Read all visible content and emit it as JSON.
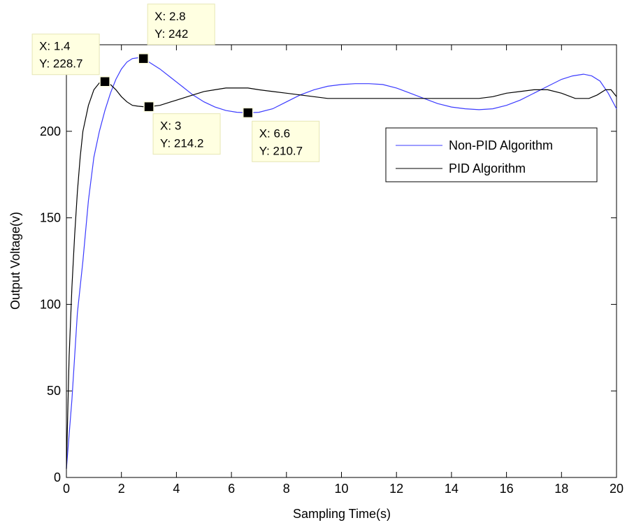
{
  "chart_data": {
    "type": "line",
    "title": "",
    "xlabel": "Sampling Time(s)",
    "ylabel": "Output Voltage(v)",
    "xlim": [
      0,
      20
    ],
    "ylim": [
      0,
      250
    ],
    "x_ticks": [
      0,
      2,
      4,
      6,
      8,
      10,
      12,
      14,
      16,
      18,
      20
    ],
    "y_ticks": [
      0,
      50,
      100,
      150,
      200
    ],
    "grid": false,
    "legend_position": "upper-right",
    "series": [
      {
        "name": "Non-PID Algorithm",
        "color": "#3b3bff",
        "x": [
          0,
          0.2,
          0.4,
          0.6,
          0.8,
          1.0,
          1.2,
          1.4,
          1.6,
          1.8,
          2.0,
          2.2,
          2.4,
          2.6,
          2.8,
          3.0,
          3.4,
          3.8,
          4.2,
          4.6,
          5.0,
          5.4,
          5.8,
          6.2,
          6.6,
          7.0,
          7.5,
          8.0,
          8.5,
          9.0,
          9.5,
          10.0,
          10.5,
          11.0,
          11.5,
          12.0,
          12.5,
          13.0,
          13.5,
          14.0,
          14.5,
          15.0,
          15.5,
          16.0,
          16.5,
          17.0,
          17.5,
          18.0,
          18.4,
          18.8,
          19.1,
          19.4,
          19.7,
          20.0
        ],
        "values": [
          5,
          45,
          95,
          125,
          160,
          185,
          200,
          212,
          222,
          230,
          236,
          240,
          242,
          242.5,
          242,
          240,
          236,
          231,
          226,
          221,
          217,
          214,
          212,
          211,
          210.7,
          211,
          213,
          217,
          221,
          224,
          226,
          227,
          227.5,
          227.5,
          227,
          225,
          222,
          219,
          216,
          214,
          213,
          212.5,
          213,
          215,
          218,
          222,
          226,
          230,
          232,
          233,
          232,
          229,
          222,
          213
        ]
      },
      {
        "name": "PID Algorithm",
        "color": "#000000",
        "x": [
          0,
          0.1,
          0.2,
          0.3,
          0.4,
          0.5,
          0.6,
          0.8,
          1.0,
          1.2,
          1.4,
          1.6,
          1.8,
          2.0,
          2.2,
          2.4,
          2.6,
          2.8,
          3.0,
          3.4,
          3.8,
          4.2,
          4.6,
          5.0,
          5.4,
          5.8,
          6.2,
          6.6,
          7.0,
          7.5,
          8.0,
          8.5,
          9.0,
          9.5,
          10.0,
          11.0,
          12.0,
          13.0,
          14.0,
          15.0,
          15.5,
          16.0,
          16.5,
          17.0,
          17.5,
          18.0,
          18.5,
          19.0,
          19.3,
          19.6,
          19.8,
          20.0
        ],
        "values": [
          5,
          70,
          110,
          140,
          165,
          185,
          200,
          215,
          224,
          228,
          228.7,
          227,
          224,
          220,
          217,
          215,
          214.5,
          214.2,
          214.2,
          215,
          217,
          219,
          221,
          223,
          224,
          225,
          225,
          225,
          224,
          223,
          222,
          221,
          220,
          219,
          219,
          219,
          219,
          219,
          219,
          219,
          220,
          222,
          223,
          224,
          224,
          222,
          219,
          219,
          221,
          224,
          224,
          220
        ]
      }
    ],
    "datatips": [
      {
        "x": 1.4,
        "y": 228.7,
        "lines": [
          "X: 1.4",
          "Y: 228.7"
        ]
      },
      {
        "x": 2.8,
        "y": 242,
        "lines": [
          "X: 2.8",
          "Y: 242"
        ]
      },
      {
        "x": 3,
        "y": 214.2,
        "lines": [
          "X: 3",
          "Y: 214.2"
        ]
      },
      {
        "x": 6.6,
        "y": 210.7,
        "lines": [
          "X: 6.6",
          "Y: 210.7"
        ]
      }
    ]
  }
}
